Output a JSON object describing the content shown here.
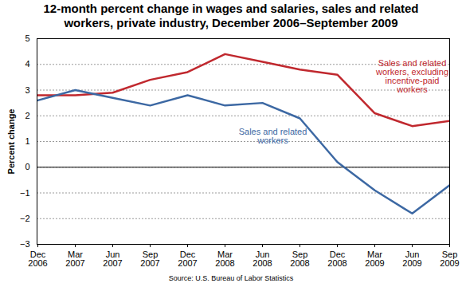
{
  "chart_data": {
    "type": "line",
    "title": "12-month percent change in wages and salaries, sales and related workers, private industry, December 2006–September 2009",
    "y_label": "Percent change",
    "source": "Source: U.S. Bureau of Labor Statistics",
    "x": [
      "Dec 2006",
      "Mar 2007",
      "Jun 2007",
      "Sep 2007",
      "Dec 2007",
      "Mar 2008",
      "Jun 2008",
      "Sep 2008",
      "Dec 2008",
      "Mar 2009",
      "Jun 2009",
      "Sep 2009"
    ],
    "series": [
      {
        "name": "Sales and related workers, excluding incentive-paid workers",
        "color": "#c0282e",
        "values": [
          2.8,
          2.8,
          2.9,
          3.4,
          3.7,
          4.4,
          4.1,
          3.8,
          3.6,
          2.1,
          1.6,
          1.8
        ]
      },
      {
        "name": "Sales and related workers",
        "color": "#3c68a3",
        "values": [
          2.6,
          3.0,
          2.7,
          2.4,
          2.8,
          2.4,
          2.5,
          1.9,
          0.2,
          -0.9,
          -1.8,
          -0.7
        ]
      }
    ],
    "ylim": [
      -3,
      5
    ],
    "yticks": [
      -3,
      -2,
      -1,
      0,
      1,
      2,
      3,
      4,
      5
    ],
    "grid": true
  }
}
